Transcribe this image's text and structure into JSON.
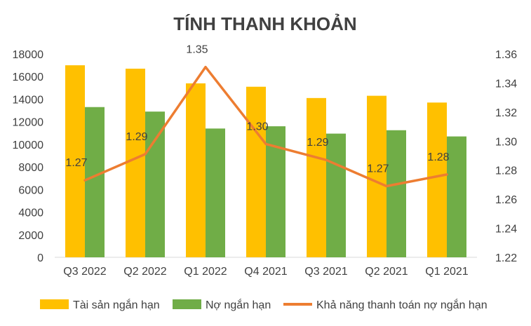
{
  "chart_data": {
    "type": "bar",
    "title": "TÍNH THANH KHOẢN",
    "categories": [
      "Q3 2022",
      "Q2 2022",
      "Q1 2022",
      "Q4 2021",
      "Q3 2021",
      "Q2 2021",
      "Q1 2021"
    ],
    "series": [
      {
        "name": "Tài sản ngắn hạn",
        "type": "bar",
        "axis": "left",
        "color": "#FFC000",
        "values": [
          17000,
          16700,
          15400,
          15100,
          14100,
          14300,
          13700
        ]
      },
      {
        "name": "Nợ ngắn hạn",
        "type": "bar",
        "axis": "left",
        "color": "#70AD47",
        "values": [
          13300,
          12900,
          11400,
          11600,
          10950,
          11250,
          10700
        ]
      },
      {
        "name": "Khả năng thanh toán nợ ngắn hạn",
        "type": "line",
        "axis": "right",
        "color": "#ED7D31",
        "values": [
          1.273,
          1.291,
          1.351,
          1.298,
          1.287,
          1.269,
          1.277
        ],
        "labels": [
          "1.27",
          "1.29",
          "1.35",
          "1.30",
          "1.29",
          "1.27",
          "1.28"
        ]
      }
    ],
    "y_left": {
      "min": 0,
      "max": 18000,
      "step": 2000,
      "ticks": [
        "0",
        "2000",
        "4000",
        "6000",
        "8000",
        "10000",
        "12000",
        "14000",
        "16000",
        "18000"
      ]
    },
    "y_right": {
      "min": 1.22,
      "max": 1.36,
      "step": 0.02,
      "ticks": [
        "1.22",
        "1.24",
        "1.26",
        "1.28",
        "1.30",
        "1.32",
        "1.34",
        "1.36"
      ]
    },
    "grid": false,
    "legend_position": "bottom"
  }
}
